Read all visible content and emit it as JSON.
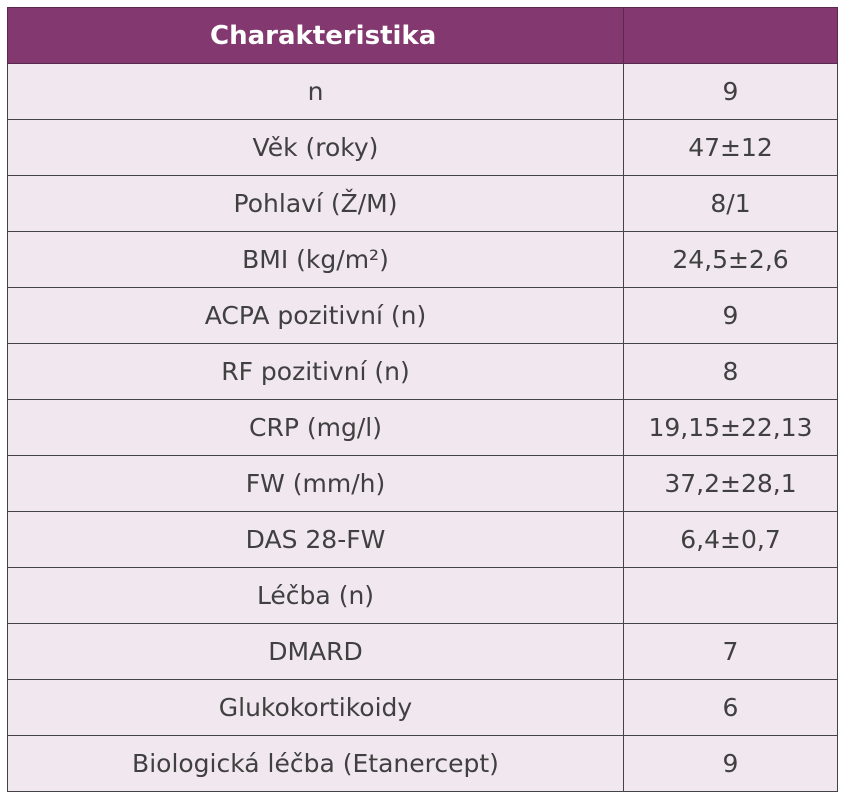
{
  "table": {
    "header": [
      "Charakteristika",
      ""
    ],
    "rows": [
      {
        "label": "n",
        "value": "9"
      },
      {
        "label": "Věk (roky)",
        "value": "47±12"
      },
      {
        "label": "Pohlaví (Ž/M)",
        "value": "8/1"
      },
      {
        "label": "BMI (kg/m²)",
        "value": "24,5±2,6"
      },
      {
        "label": "ACPA pozitivní (n)",
        "value": "9"
      },
      {
        "label": "RF pozitivní (n)",
        "value": "8"
      },
      {
        "label": "CRP (mg/l)",
        "value": "19,15±22,13"
      },
      {
        "label": "FW (mm/h)",
        "value": "37,2±28,1"
      },
      {
        "label": "DAS 28-FW",
        "value": "6,4±0,7"
      },
      {
        "label": "Léčba (n)",
        "value": ""
      },
      {
        "label": "DMARD",
        "value": "7"
      },
      {
        "label": "Glukokortikoidy",
        "value": "6"
      },
      {
        "label": "Biologická léčba (Etanercept)",
        "value": "9"
      }
    ]
  },
  "colors": {
    "header_bg": "#83396f",
    "header_text": "#ffffff",
    "row_bg": "#f1e7ef",
    "cell_text": "#404040",
    "border": "#444444"
  }
}
